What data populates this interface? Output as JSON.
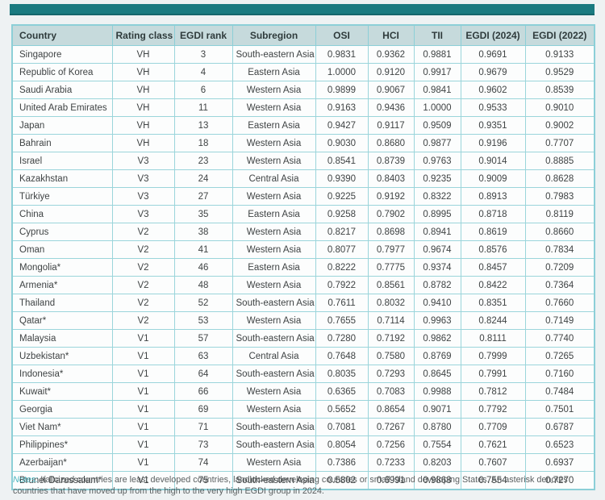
{
  "colors": {
    "accent_teal_bar": "#1a7a80",
    "header_background": "#c6dadc",
    "cell_border": "#9bd5db",
    "notes_label_color": "#4ab2bc"
  },
  "table": {
    "columns": [
      "Country",
      "Rating class",
      "EGDI rank",
      "Subregion",
      "OSI",
      "HCI",
      "TII",
      "EGDI (2024)",
      "EGDI (2022)"
    ],
    "rows": [
      [
        "Singapore",
        "VH",
        "3",
        "South-eastern Asia",
        "0.9831",
        "0.9362",
        "0.9881",
        "0.9691",
        "0.9133"
      ],
      [
        "Republic of Korea",
        "VH",
        "4",
        "Eastern Asia",
        "1.0000",
        "0.9120",
        "0.9917",
        "0.9679",
        "0.9529"
      ],
      [
        "Saudi Arabia",
        "VH",
        "6",
        "Western Asia",
        "0.9899",
        "0.9067",
        "0.9841",
        "0.9602",
        "0.8539"
      ],
      [
        "United Arab Emirates",
        "VH",
        "11",
        "Western Asia",
        "0.9163",
        "0.9436",
        "1.0000",
        "0.9533",
        "0.9010"
      ],
      [
        "Japan",
        "VH",
        "13",
        "Eastern Asia",
        "0.9427",
        "0.9117",
        "0.9509",
        "0.9351",
        "0.9002"
      ],
      [
        "Bahrain",
        "VH",
        "18",
        "Western Asia",
        "0.9030",
        "0.8680",
        "0.9877",
        "0.9196",
        "0.7707"
      ],
      [
        "Israel",
        "V3",
        "23",
        "Western Asia",
        "0.8541",
        "0.8739",
        "0.9763",
        "0.9014",
        "0.8885"
      ],
      [
        "Kazakhstan",
        "V3",
        "24",
        "Central Asia",
        "0.9390",
        "0.8403",
        "0.9235",
        "0.9009",
        "0.8628"
      ],
      [
        "Türkiye",
        "V3",
        "27",
        "Western Asia",
        "0.9225",
        "0.9192",
        "0.8322",
        "0.8913",
        "0.7983"
      ],
      [
        "China",
        "V3",
        "35",
        "Eastern Asia",
        "0.9258",
        "0.7902",
        "0.8995",
        "0.8718",
        "0.8119"
      ],
      [
        "Cyprus",
        "V2",
        "38",
        "Western Asia",
        "0.8217",
        "0.8698",
        "0.8941",
        "0.8619",
        "0.8660"
      ],
      [
        "Oman",
        "V2",
        "41",
        "Western Asia",
        "0.8077",
        "0.7977",
        "0.9674",
        "0.8576",
        "0.7834"
      ],
      [
        "Mongolia*",
        "V2",
        "46",
        "Eastern Asia",
        "0.8222",
        "0.7775",
        "0.9374",
        "0.8457",
        "0.7209"
      ],
      [
        "Armenia*",
        "V2",
        "48",
        "Western Asia",
        "0.7922",
        "0.8561",
        "0.8782",
        "0.8422",
        "0.7364"
      ],
      [
        "Thailand",
        "V2",
        "52",
        "South-eastern Asia",
        "0.7611",
        "0.8032",
        "0.9410",
        "0.8351",
        "0.7660"
      ],
      [
        "Qatar*",
        "V2",
        "53",
        "Western Asia",
        "0.7655",
        "0.7114",
        "0.9963",
        "0.8244",
        "0.7149"
      ],
      [
        "Malaysia",
        "V1",
        "57",
        "South-eastern Asia",
        "0.7280",
        "0.7192",
        "0.9862",
        "0.8111",
        "0.7740"
      ],
      [
        "Uzbekistan*",
        "V1",
        "63",
        "Central Asia",
        "0.7648",
        "0.7580",
        "0.8769",
        "0.7999",
        "0.7265"
      ],
      [
        "Indonesia*",
        "V1",
        "64",
        "South-eastern Asia",
        "0.8035",
        "0.7293",
        "0.8645",
        "0.7991",
        "0.7160"
      ],
      [
        "Kuwait*",
        "V1",
        "66",
        "Western Asia",
        "0.6365",
        "0.7083",
        "0.9988",
        "0.7812",
        "0.7484"
      ],
      [
        "Georgia",
        "V1",
        "69",
        "Western Asia",
        "0.5652",
        "0.8654",
        "0.9071",
        "0.7792",
        "0.7501"
      ],
      [
        "Viet Nam*",
        "V1",
        "71",
        "South-eastern Asia",
        "0.7081",
        "0.7267",
        "0.8780",
        "0.7709",
        "0.6787"
      ],
      [
        "Philippines*",
        "V1",
        "73",
        "South-eastern Asia",
        "0.8054",
        "0.7256",
        "0.7554",
        "0.7621",
        "0.6523"
      ],
      [
        "Azerbaijan*",
        "V1",
        "74",
        "Western Asia",
        "0.7386",
        "0.7233",
        "0.8203",
        "0.7607",
        "0.6937"
      ],
      [
        "Brunei Darussalam*",
        "V1",
        "75",
        "South-eastern Asia",
        "0.5802",
        "0.6991",
        "0.9868",
        "0.7554",
        "0.7270"
      ]
    ]
  },
  "notes": {
    "label": "Notes:",
    "text": " Italicized countries are least developed countries, landlocked developing countries or small island developing States. An asterisk denotes countries that have moved up from the high to the very high EGDI group in 2024."
  }
}
